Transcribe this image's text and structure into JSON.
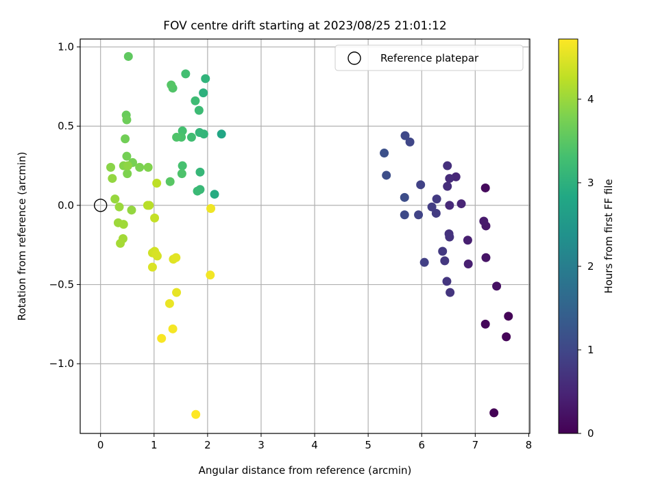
{
  "chart_data": {
    "type": "scatter",
    "title": "FOV centre drift starting at 2023/08/25 21:01:12",
    "xlabel": "Angular distance from reference (arcmin)",
    "ylabel": "Rotation from reference (arcmin)",
    "xlim": [
      -0.38,
      8.02
    ],
    "ylim": [
      -1.44,
      1.05
    ],
    "x_ticks": [
      0,
      1,
      2,
      3,
      4,
      5,
      6,
      7,
      8
    ],
    "y_ticks": [
      -1.0,
      -0.5,
      0.0,
      0.5,
      1.0
    ],
    "x_tick_labels": [
      "0",
      "1",
      "2",
      "3",
      "4",
      "5",
      "6",
      "7",
      "8"
    ],
    "y_tick_labels": [
      "−1.0",
      "−0.5",
      "0.0",
      "0.5",
      "1.0"
    ],
    "grid": true,
    "legend": {
      "position": "top-right",
      "entries": [
        "Reference platepar"
      ]
    },
    "reference_point": {
      "x": 0,
      "y": 0
    },
    "colorbar": {
      "label": "Hours from first FF file",
      "range": [
        0,
        4.72
      ],
      "ticks": [
        0,
        1,
        2,
        3,
        4
      ],
      "tick_labels": [
        "0",
        "1",
        "2",
        "3",
        "4"
      ],
      "colormap": "viridis"
    },
    "points": [
      {
        "x": 7.35,
        "y": -1.31,
        "hours": 0.02
      },
      {
        "x": 7.62,
        "y": -0.7,
        "hours": 0.04
      },
      {
        "x": 7.58,
        "y": -0.83,
        "hours": 0.06
      },
      {
        "x": 7.19,
        "y": -0.75,
        "hours": 0.08
      },
      {
        "x": 7.19,
        "y": 0.11,
        "hours": 0.12
      },
      {
        "x": 7.4,
        "y": -0.51,
        "hours": 0.22
      },
      {
        "x": 7.2,
        "y": -0.33,
        "hours": 0.26
      },
      {
        "x": 7.2,
        "y": -0.13,
        "hours": 0.3
      },
      {
        "x": 7.16,
        "y": -0.1,
        "hours": 0.34
      },
      {
        "x": 6.86,
        "y": -0.22,
        "hours": 0.4
      },
      {
        "x": 6.87,
        "y": -0.37,
        "hours": 0.42
      },
      {
        "x": 6.74,
        "y": 0.01,
        "hours": 0.48
      },
      {
        "x": 6.64,
        "y": 0.18,
        "hours": 0.52
      },
      {
        "x": 6.52,
        "y": 0.0,
        "hours": 0.55
      },
      {
        "x": 6.52,
        "y": 0.17,
        "hours": 0.58
      },
      {
        "x": 6.48,
        "y": 0.12,
        "hours": 0.62
      },
      {
        "x": 6.48,
        "y": 0.25,
        "hours": 0.65
      },
      {
        "x": 6.51,
        "y": -0.18,
        "hours": 0.68
      },
      {
        "x": 6.52,
        "y": -0.2,
        "hours": 0.7
      },
      {
        "x": 6.53,
        "y": -0.55,
        "hours": 0.72
      },
      {
        "x": 6.47,
        "y": -0.48,
        "hours": 0.74
      },
      {
        "x": 6.43,
        "y": -0.35,
        "hours": 0.76
      },
      {
        "x": 6.39,
        "y": -0.29,
        "hours": 0.78
      },
      {
        "x": 6.28,
        "y": 0.04,
        "hours": 0.8
      },
      {
        "x": 6.27,
        "y": -0.05,
        "hours": 0.82
      },
      {
        "x": 6.19,
        "y": -0.01,
        "hours": 0.84
      },
      {
        "x": 6.05,
        "y": -0.36,
        "hours": 0.88
      },
      {
        "x": 5.98,
        "y": 0.13,
        "hours": 0.92
      },
      {
        "x": 5.94,
        "y": -0.06,
        "hours": 0.95
      },
      {
        "x": 5.78,
        "y": 0.4,
        "hours": 1.0
      },
      {
        "x": 5.69,
        "y": 0.44,
        "hours": 1.02
      },
      {
        "x": 5.68,
        "y": -0.06,
        "hours": 1.05
      },
      {
        "x": 5.68,
        "y": 0.05,
        "hours": 1.1
      },
      {
        "x": 5.34,
        "y": 0.19,
        "hours": 1.12
      },
      {
        "x": 5.3,
        "y": 0.33,
        "hours": 1.15
      },
      {
        "x": 2.26,
        "y": 0.45,
        "hours": 2.8
      },
      {
        "x": 2.13,
        "y": 0.07,
        "hours": 2.9
      },
      {
        "x": 1.92,
        "y": 0.71,
        "hours": 3.0
      },
      {
        "x": 1.96,
        "y": 0.8,
        "hours": 3.05
      },
      {
        "x": 1.93,
        "y": 0.45,
        "hours": 3.08
      },
      {
        "x": 1.85,
        "y": 0.46,
        "hours": 3.1
      },
      {
        "x": 1.86,
        "y": 0.21,
        "hours": 3.12
      },
      {
        "x": 1.86,
        "y": 0.1,
        "hours": 3.15
      },
      {
        "x": 1.81,
        "y": 0.09,
        "hours": 3.18
      },
      {
        "x": 1.84,
        "y": 0.6,
        "hours": 3.2
      },
      {
        "x": 1.77,
        "y": 0.66,
        "hours": 3.22
      },
      {
        "x": 1.7,
        "y": 0.43,
        "hours": 3.25
      },
      {
        "x": 1.59,
        "y": 0.83,
        "hours": 3.28
      },
      {
        "x": 1.53,
        "y": 0.47,
        "hours": 3.3
      },
      {
        "x": 1.53,
        "y": 0.25,
        "hours": 3.32
      },
      {
        "x": 1.51,
        "y": 0.43,
        "hours": 3.35
      },
      {
        "x": 1.52,
        "y": 0.2,
        "hours": 3.38
      },
      {
        "x": 1.42,
        "y": 0.43,
        "hours": 3.4
      },
      {
        "x": 1.35,
        "y": 0.74,
        "hours": 3.42
      },
      {
        "x": 1.32,
        "y": 0.76,
        "hours": 3.45
      },
      {
        "x": 1.3,
        "y": 0.15,
        "hours": 3.48
      },
      {
        "x": 0.52,
        "y": 0.94,
        "hours": 3.55
      },
      {
        "x": 0.48,
        "y": 0.57,
        "hours": 3.62
      },
      {
        "x": 0.49,
        "y": 0.54,
        "hours": 3.66
      },
      {
        "x": 0.46,
        "y": 0.42,
        "hours": 3.7
      },
      {
        "x": 0.49,
        "y": 0.31,
        "hours": 3.72
      },
      {
        "x": 0.6,
        "y": 0.27,
        "hours": 3.75
      },
      {
        "x": 0.73,
        "y": 0.24,
        "hours": 3.78
      },
      {
        "x": 0.89,
        "y": 0.24,
        "hours": 3.82
      },
      {
        "x": 0.5,
        "y": 0.2,
        "hours": 3.8
      },
      {
        "x": 0.43,
        "y": 0.25,
        "hours": 3.85
      },
      {
        "x": 0.51,
        "y": 0.25,
        "hours": 3.92
      },
      {
        "x": 0.19,
        "y": 0.24,
        "hours": 3.88
      },
      {
        "x": 0.22,
        "y": 0.17,
        "hours": 3.95
      },
      {
        "x": 0.27,
        "y": 0.04,
        "hours": 3.98
      },
      {
        "x": 0.35,
        "y": -0.01,
        "hours": 4.0
      },
      {
        "x": 0.58,
        "y": -0.03,
        "hours": 3.96
      },
      {
        "x": 0.33,
        "y": -0.11,
        "hours": 4.02
      },
      {
        "x": 0.43,
        "y": -0.12,
        "hours": 4.04
      },
      {
        "x": 0.42,
        "y": -0.21,
        "hours": 4.06
      },
      {
        "x": 0.37,
        "y": -0.24,
        "hours": 4.08
      },
      {
        "x": 0.88,
        "y": 0.0,
        "hours": 4.2
      },
      {
        "x": 0.91,
        "y": 0.0,
        "hours": 4.22
      },
      {
        "x": 1.05,
        "y": 0.14,
        "hours": 4.25
      },
      {
        "x": 1.01,
        "y": -0.08,
        "hours": 4.3
      },
      {
        "x": 0.97,
        "y": -0.3,
        "hours": 4.38
      },
      {
        "x": 1.01,
        "y": -0.29,
        "hours": 4.4
      },
      {
        "x": 1.06,
        "y": -0.32,
        "hours": 4.42
      },
      {
        "x": 1.04,
        "y": -0.31,
        "hours": 4.44
      },
      {
        "x": 0.97,
        "y": -0.39,
        "hours": 4.46
      },
      {
        "x": 1.36,
        "y": -0.34,
        "hours": 4.5
      },
      {
        "x": 1.41,
        "y": -0.33,
        "hours": 4.52
      },
      {
        "x": 2.06,
        "y": -0.02,
        "hours": 4.62
      },
      {
        "x": 2.05,
        "y": -0.44,
        "hours": 4.64
      },
      {
        "x": 1.42,
        "y": -0.55,
        "hours": 4.56
      },
      {
        "x": 1.29,
        "y": -0.62,
        "hours": 4.58
      },
      {
        "x": 1.35,
        "y": -0.78,
        "hours": 4.66
      },
      {
        "x": 1.14,
        "y": -0.84,
        "hours": 4.68
      },
      {
        "x": 1.78,
        "y": -1.32,
        "hours": 4.72
      }
    ]
  }
}
